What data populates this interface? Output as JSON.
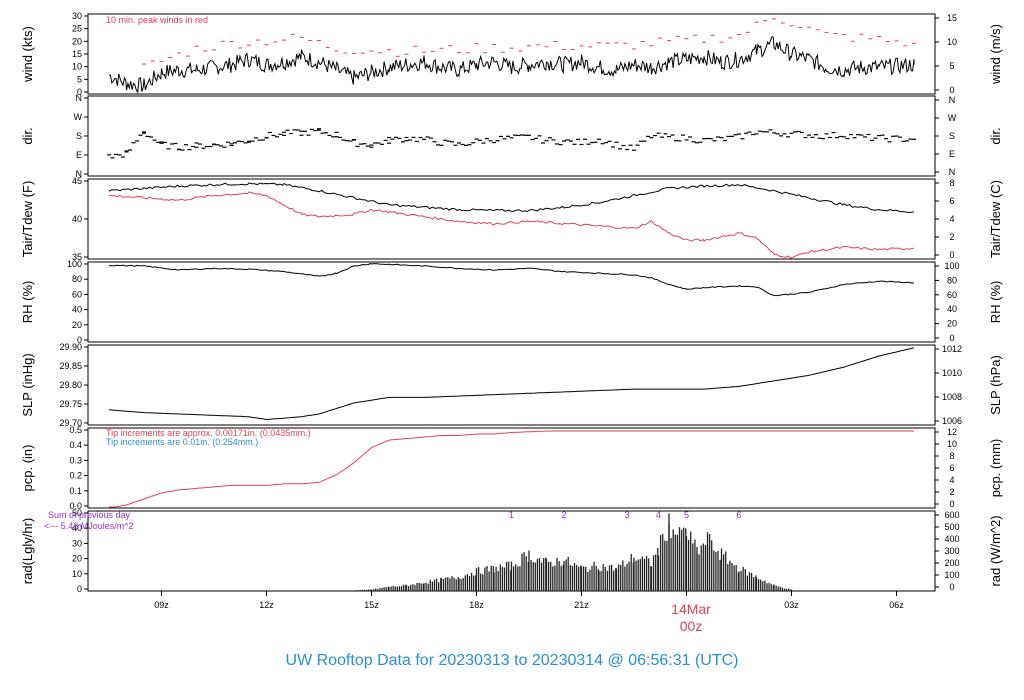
{
  "footer_title": "UW Rooftop Data for 20230313  to  20230314 @ 06:56:31  (UTC)",
  "date_marker": {
    "day": "14Mar",
    "time": "00z"
  },
  "x_axis": {
    "ticks": [
      "09z",
      "12z",
      "15z",
      "18z",
      "21z",
      "03z",
      "06z"
    ]
  },
  "colors": {
    "primary": "#000000",
    "red": "#e0405a",
    "blue": "#2a8fd0",
    "purple": "#9b2fd6"
  },
  "chart_data": [
    {
      "type": "line",
      "id": "wind",
      "ylabel_left": "wind (kts)",
      "ylabel_right": "wind (m/s)",
      "ylim": [
        0,
        30
      ],
      "left_ticks": [
        "0",
        "5",
        "10",
        "15",
        "20",
        "25",
        "30"
      ],
      "right_ticks": [
        "0",
        "5",
        "10",
        "15"
      ],
      "annotation": "10 min. peak winds in red",
      "series": [
        {
          "color": "#000000",
          "x": [
            7.5,
            8,
            8.5,
            9,
            9.5,
            10,
            10.5,
            11,
            11.5,
            12,
            12.5,
            13,
            13.5,
            14,
            14.5,
            15,
            15.5,
            16,
            16.5,
            17,
            17.5,
            18,
            18.5,
            19,
            19.5,
            20,
            20.5,
            21,
            21.5,
            22,
            22.5,
            23,
            23.5,
            24,
            24.5,
            25,
            25.5,
            26,
            26.5,
            27,
            27.5,
            28,
            28.5,
            29,
            29.5,
            30.5
          ],
          "y": [
            7,
            4,
            3,
            8,
            9,
            9,
            10,
            11,
            13,
            11,
            12,
            14,
            12,
            9,
            6,
            8,
            10,
            11,
            12,
            10,
            9,
            11,
            12,
            10,
            11,
            12,
            11,
            12,
            10,
            9,
            11,
            10,
            12,
            13,
            14,
            12,
            13,
            16,
            19,
            15,
            13,
            10,
            9,
            10,
            10,
            11
          ]
        },
        {
          "color": "#e0405a",
          "x": [
            8.5,
            10,
            11,
            12,
            13,
            14,
            16,
            18,
            20,
            22,
            24,
            25.5,
            26.5,
            27,
            28,
            29,
            30.5
          ],
          "y": [
            10,
            17,
            19,
            20,
            21,
            17,
            16,
            17,
            18,
            18,
            20,
            22,
            29,
            27,
            22,
            21,
            19
          ]
        }
      ]
    },
    {
      "type": "scatter",
      "id": "dir",
      "ylabel_left": "dir.",
      "ylabel_right": "dir.",
      "ylim": [
        0,
        360
      ],
      "left_ticks": [
        "N",
        "E",
        "S",
        "W",
        "N"
      ],
      "right_ticks": [
        "N",
        "E",
        "S",
        "W",
        "N"
      ],
      "series": [
        {
          "color": "#000000",
          "x": [
            7.5,
            8,
            8.5,
            9,
            9.5,
            10,
            10.5,
            11,
            11.5,
            12,
            12.5,
            13,
            13.5,
            14,
            14.5,
            15,
            15.5,
            16,
            16.5,
            17,
            17.5,
            18,
            18.5,
            19,
            19.5,
            20,
            20.5,
            21,
            21.5,
            22,
            22.5,
            23,
            23.5,
            24,
            24.5,
            25,
            25.5,
            26,
            26.5,
            27,
            27.5,
            28,
            28.5,
            29,
            29.5,
            30.5
          ],
          "y": [
            85,
            100,
            200,
            140,
            130,
            135,
            140,
            145,
            160,
            180,
            190,
            195,
            200,
            185,
            150,
            140,
            160,
            170,
            165,
            150,
            140,
            155,
            165,
            170,
            175,
            160,
            155,
            150,
            165,
            140,
            120,
            180,
            175,
            170,
            160,
            165,
            175,
            200,
            195,
            190,
            185,
            180,
            185,
            175,
            170,
            165
          ]
        }
      ]
    },
    {
      "type": "line",
      "id": "temp",
      "ylabel_left": "Tair/Tdew (F)",
      "ylabel_right": "Tair/Tdew (C)",
      "ylim": [
        31.5,
        48.5
      ],
      "left_ticks": [
        "35",
        "40",
        "45"
      ],
      "right_ticks": [
        "0",
        "2",
        "4",
        "6",
        "8"
      ],
      "series": [
        {
          "color": "#000000",
          "x": [
            7.5,
            8.5,
            9.5,
            10.5,
            11.5,
            12.5,
            13.5,
            14.5,
            15.5,
            16.5,
            17.5,
            18.5,
            19.5,
            20.5,
            21.5,
            22.5,
            23.5,
            24.5,
            25.5,
            26.5,
            27.5,
            28.5,
            29.5,
            30.5
          ],
          "y": [
            46,
            46.5,
            47,
            47.3,
            47.5,
            47.3,
            46,
            44.5,
            43,
            42.5,
            42,
            41.8,
            41.8,
            42.5,
            43.5,
            45,
            46.5,
            47,
            47.3,
            46,
            44.5,
            43,
            42,
            41.5
          ]
        },
        {
          "color": "#e0405a",
          "x": [
            7.5,
            8.5,
            9.5,
            10.5,
            11.5,
            12,
            12.5,
            13,
            13.5,
            14.5,
            15,
            15.5,
            16.5,
            17.5,
            18.5,
            19.5,
            20.5,
            21.5,
            22.5,
            23,
            23.5,
            24,
            24.5,
            25.5,
            26,
            26.5,
            27,
            27.5,
            28.5,
            29.5,
            30.5
          ],
          "y": [
            45,
            44.5,
            44,
            45,
            45.5,
            45,
            43,
            41,
            40.5,
            41,
            42,
            41.5,
            40.5,
            39.5,
            39,
            39.5,
            39,
            38.5,
            38,
            39.5,
            37,
            35.5,
            35.5,
            37,
            36,
            32.5,
            31.8,
            33,
            34,
            33.5,
            33.8
          ]
        }
      ]
    },
    {
      "type": "line",
      "id": "rh",
      "ylabel_left": "RH (%)",
      "ylabel_right": "RH (%)",
      "ylim": [
        0,
        100
      ],
      "left_ticks": [
        "0",
        "20",
        "40",
        "60",
        "80",
        "100"
      ],
      "right_ticks": [
        "0",
        "20",
        "40",
        "60",
        "80",
        "100"
      ],
      "series": [
        {
          "color": "#000000",
          "x": [
            7.5,
            8.5,
            9.5,
            10.5,
            11.5,
            12.5,
            13.5,
            14,
            14.5,
            15,
            15.5,
            16.5,
            17.5,
            18.5,
            19.5,
            20.5,
            21.5,
            22.5,
            23,
            23.5,
            24,
            24.5,
            25.5,
            26,
            26.5,
            27,
            27.5,
            28.5,
            29.5,
            30.5
          ],
          "y": [
            96,
            95,
            90,
            92,
            91,
            88,
            82,
            86,
            95,
            98,
            97,
            95,
            92,
            90,
            92,
            88,
            86,
            84,
            80,
            72,
            66,
            68,
            70,
            69,
            58,
            60,
            62,
            72,
            76,
            74
          ]
        }
      ]
    },
    {
      "type": "line",
      "id": "slp",
      "ylabel_left": "SLP (inHg)",
      "ylabel_right": "SLP (hPa)",
      "ylim": [
        29.66,
        29.95
      ],
      "left_ticks": [
        "29.70",
        "29.75",
        "29.80",
        "29.85",
        "29.90"
      ],
      "right_ticks": [
        "1006",
        "1008",
        "1010",
        "1012"
      ],
      "series": [
        {
          "color": "#000000",
          "x": [
            7.5,
            8.5,
            9.5,
            10.5,
            11.5,
            12,
            12.5,
            13,
            13.5,
            14,
            14.5,
            15,
            15.5,
            16.5,
            17.5,
            18.5,
            19.5,
            20.5,
            21.5,
            22.5,
            23.5,
            24.5,
            25.5,
            26.5,
            27.5,
            28.5,
            29.5,
            30.5
          ],
          "y": [
            29.715,
            29.705,
            29.7,
            29.695,
            29.69,
            29.68,
            29.685,
            29.69,
            29.7,
            29.72,
            29.74,
            29.75,
            29.76,
            29.76,
            29.765,
            29.77,
            29.775,
            29.78,
            29.785,
            29.79,
            29.79,
            29.79,
            29.8,
            29.82,
            29.84,
            29.87,
            29.91,
            29.94
          ]
        }
      ]
    },
    {
      "type": "line",
      "id": "pcp",
      "ylabel_left": "pcp. (in)",
      "ylabel_right": "pcp. (mm)",
      "ylim": [
        0,
        0.53
      ],
      "left_ticks": [
        "0.0",
        "0.1",
        "0.2",
        "0.3",
        "0.4",
        "0.5"
      ],
      "right_ticks": [
        "0",
        "2",
        "4",
        "6",
        "8",
        "10",
        "12"
      ],
      "annotations": [
        "Tip increments are approx. 0.00171in. (0.0435mm.)",
        "Tip increments are 0.01in. (0.254mm.)"
      ],
      "series": [
        {
          "color": "#e0405a",
          "x": [
            7.5,
            8,
            8.5,
            9,
            9.5,
            10,
            10.5,
            11,
            11.5,
            12,
            12.5,
            13,
            13.5,
            14,
            14.5,
            15,
            15.5,
            16,
            16.5,
            17,
            17.5,
            18,
            18.5,
            19,
            20,
            22,
            24,
            26,
            28,
            30.5
          ],
          "y": [
            0,
            0.02,
            0.06,
            0.1,
            0.12,
            0.13,
            0.14,
            0.15,
            0.15,
            0.15,
            0.16,
            0.16,
            0.17,
            0.22,
            0.3,
            0.4,
            0.45,
            0.46,
            0.47,
            0.48,
            0.48,
            0.49,
            0.49,
            0.5,
            0.51,
            0.51,
            0.51,
            0.51,
            0.51,
            0.51
          ]
        }
      ]
    },
    {
      "type": "bar",
      "id": "rad",
      "ylabel_left": "rad(Lgly/hr)",
      "ylabel_right": "rad (W/m^2)",
      "ylim": [
        0,
        50
      ],
      "left_ticks": [
        "0",
        "10",
        "20",
        "30",
        "40",
        "50"
      ],
      "right_ticks": [
        "0",
        "100",
        "200",
        "300",
        "400",
        "500",
        "600"
      ],
      "annotations": [
        "Sum of previous day",
        "<--- 5.43 MJoules/m^2"
      ],
      "markers": [
        "1",
        "2",
        "3",
        "4",
        "5",
        "6"
      ],
      "series": [
        {
          "color": "#222222",
          "x": [
            14.5,
            15,
            15.5,
            16,
            16.5,
            17,
            17.5,
            18,
            18.5,
            19,
            19.5,
            20,
            20.5,
            21,
            21.5,
            22,
            22.5,
            23,
            23.2,
            23.5,
            23.8,
            24,
            24.3,
            24.6,
            25,
            25.5,
            26,
            26.5,
            27
          ],
          "y": [
            0.5,
            1,
            3,
            4,
            6,
            8,
            10,
            14,
            16,
            18,
            26,
            20,
            22,
            16,
            18,
            16,
            24,
            20,
            30,
            48,
            38,
            42,
            28,
            36,
            26,
            16,
            10,
            4,
            1
          ]
        }
      ]
    }
  ]
}
